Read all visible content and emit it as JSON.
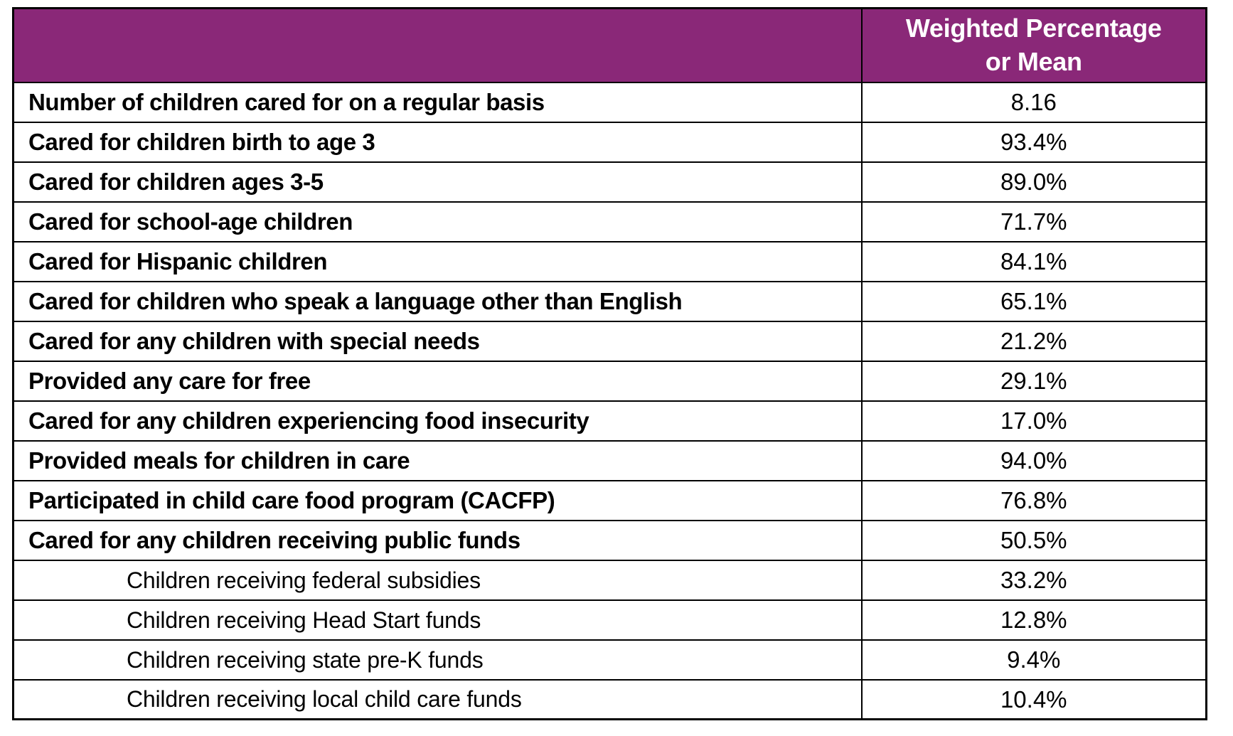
{
  "header": {
    "label_column": "",
    "value_column": "Weighted Percentage\nor Mean"
  },
  "chart_data": {
    "type": "table",
    "title": "",
    "columns": [
      "",
      "Weighted Percentage or Mean"
    ],
    "rows": [
      {
        "label": "Number of children cared for on a regular basis",
        "value": "8.16",
        "style": "bold"
      },
      {
        "label": "Cared for children birth to age 3",
        "value": "93.4%",
        "style": "bold"
      },
      {
        "label": "Cared for children ages 3-5",
        "value": "89.0%",
        "style": "bold"
      },
      {
        "label": "Cared for school-age children",
        "value": "71.7%",
        "style": "bold"
      },
      {
        "label": "Cared for Hispanic children",
        "value": "84.1%",
        "style": "bold"
      },
      {
        "label": "Cared for children who speak a language other than English",
        "value": "65.1%",
        "style": "bold"
      },
      {
        "label": "Cared for any children with special needs",
        "value": "21.2%",
        "style": "bold"
      },
      {
        "label": "Provided any care for free",
        "value": "29.1%",
        "style": "bold"
      },
      {
        "label": "Cared for any children experiencing food insecurity",
        "value": "17.0%",
        "style": "bold"
      },
      {
        "label": "Provided meals for children in care",
        "value": "94.0%",
        "style": "bold"
      },
      {
        "label": "Participated in child care food program (CACFP)",
        "value": "76.8%",
        "style": "bold"
      },
      {
        "label": "Cared for any children receiving public funds",
        "value": "50.5%",
        "style": "bold"
      },
      {
        "label": "Children receiving federal subsidies",
        "value": "33.2%",
        "style": "indent"
      },
      {
        "label": "Children receiving Head Start funds",
        "value": "12.8%",
        "style": "indent"
      },
      {
        "label": "Children receiving state pre-K funds",
        "value": "9.4%",
        "style": "indent"
      },
      {
        "label": "Children receiving local child care funds",
        "value": "10.4%",
        "style": "indent"
      }
    ]
  },
  "colors": {
    "header_bg": "#8a2878",
    "header_text": "#ffffff",
    "border": "#000000",
    "row_bg": "#ffffff",
    "body_text": "#000000"
  }
}
